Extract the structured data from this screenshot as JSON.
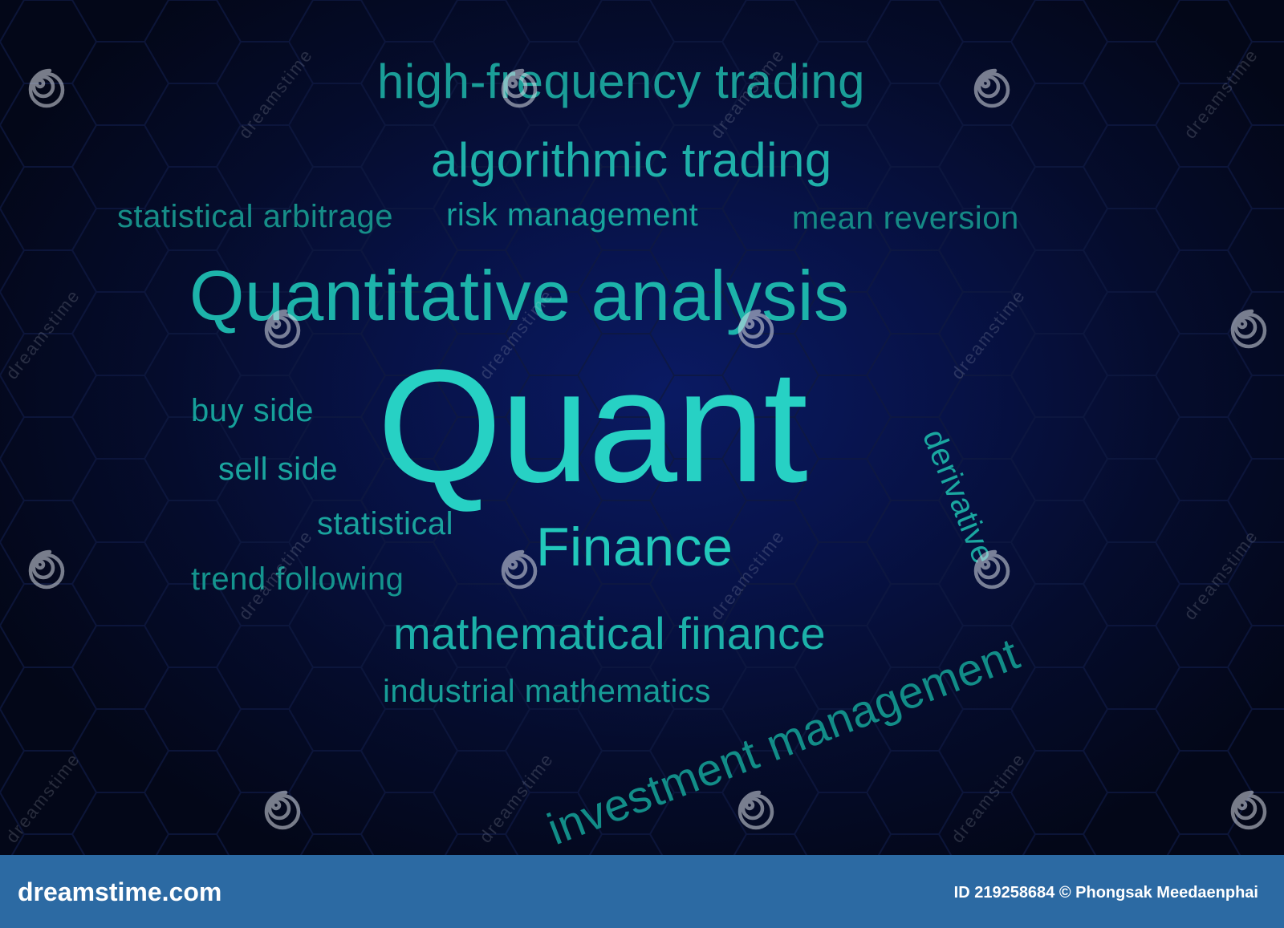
{
  "words": {
    "high_frequency_trading": "high-frequency trading",
    "algorithmic_trading": "algorithmic trading",
    "statistical_arbitrage": "statistical arbitrage",
    "risk_management": "risk management",
    "mean_reversion": "mean reversion",
    "quantitative_analysis": "Quantitative analysis",
    "quant": "Quant",
    "buy_side": "buy side",
    "sell_side": "sell side",
    "statistical": "statistical",
    "trend_following": "trend following",
    "finance": "Finance",
    "mathematical_finance": "mathematical finance",
    "industrial_mathematics": "industrial mathematics",
    "derivative": "derivative",
    "investment_management": "investment management"
  },
  "watermark": {
    "text": "dreamstime",
    "icon": "spiral-icon"
  },
  "footer": {
    "logo": "dreamstime.com",
    "credit": "ID 219258684 © Phongsak Meedaenphai"
  },
  "colors": {
    "background": "#071247",
    "word_primary": "#27d1c4",
    "word_secondary": "#1aa39d",
    "footer_bar": "#2c6aa3"
  }
}
